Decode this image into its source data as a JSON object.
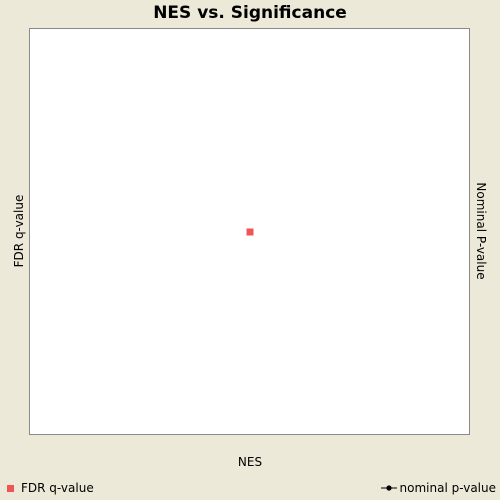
{
  "chart_data": {
    "type": "scatter",
    "title": "NES vs. Significance",
    "xlabel": "NES",
    "ylabel": "FDR q-value",
    "ylabel_right": "Nominal P-value",
    "grid": false,
    "legend_placement": "bottom",
    "series": [
      {
        "name": "FDR q-value",
        "marker": "square",
        "color": "#f05555",
        "points": [
          {
            "x": 0,
            "y": 0
          }
        ]
      },
      {
        "name": "nominal p-value",
        "marker": "circle-line",
        "color": "#000000",
        "points": []
      }
    ],
    "xlim": [
      -1,
      1
    ],
    "ylim": [
      -1,
      1
    ]
  },
  "legend": {
    "left_label": "FDR q-value",
    "right_label": "nominal p-value"
  },
  "colors": {
    "background": "#ece9d8",
    "plot_background": "#ffffff",
    "fdr_marker": "#f05555",
    "pvalue_marker": "#000000"
  }
}
